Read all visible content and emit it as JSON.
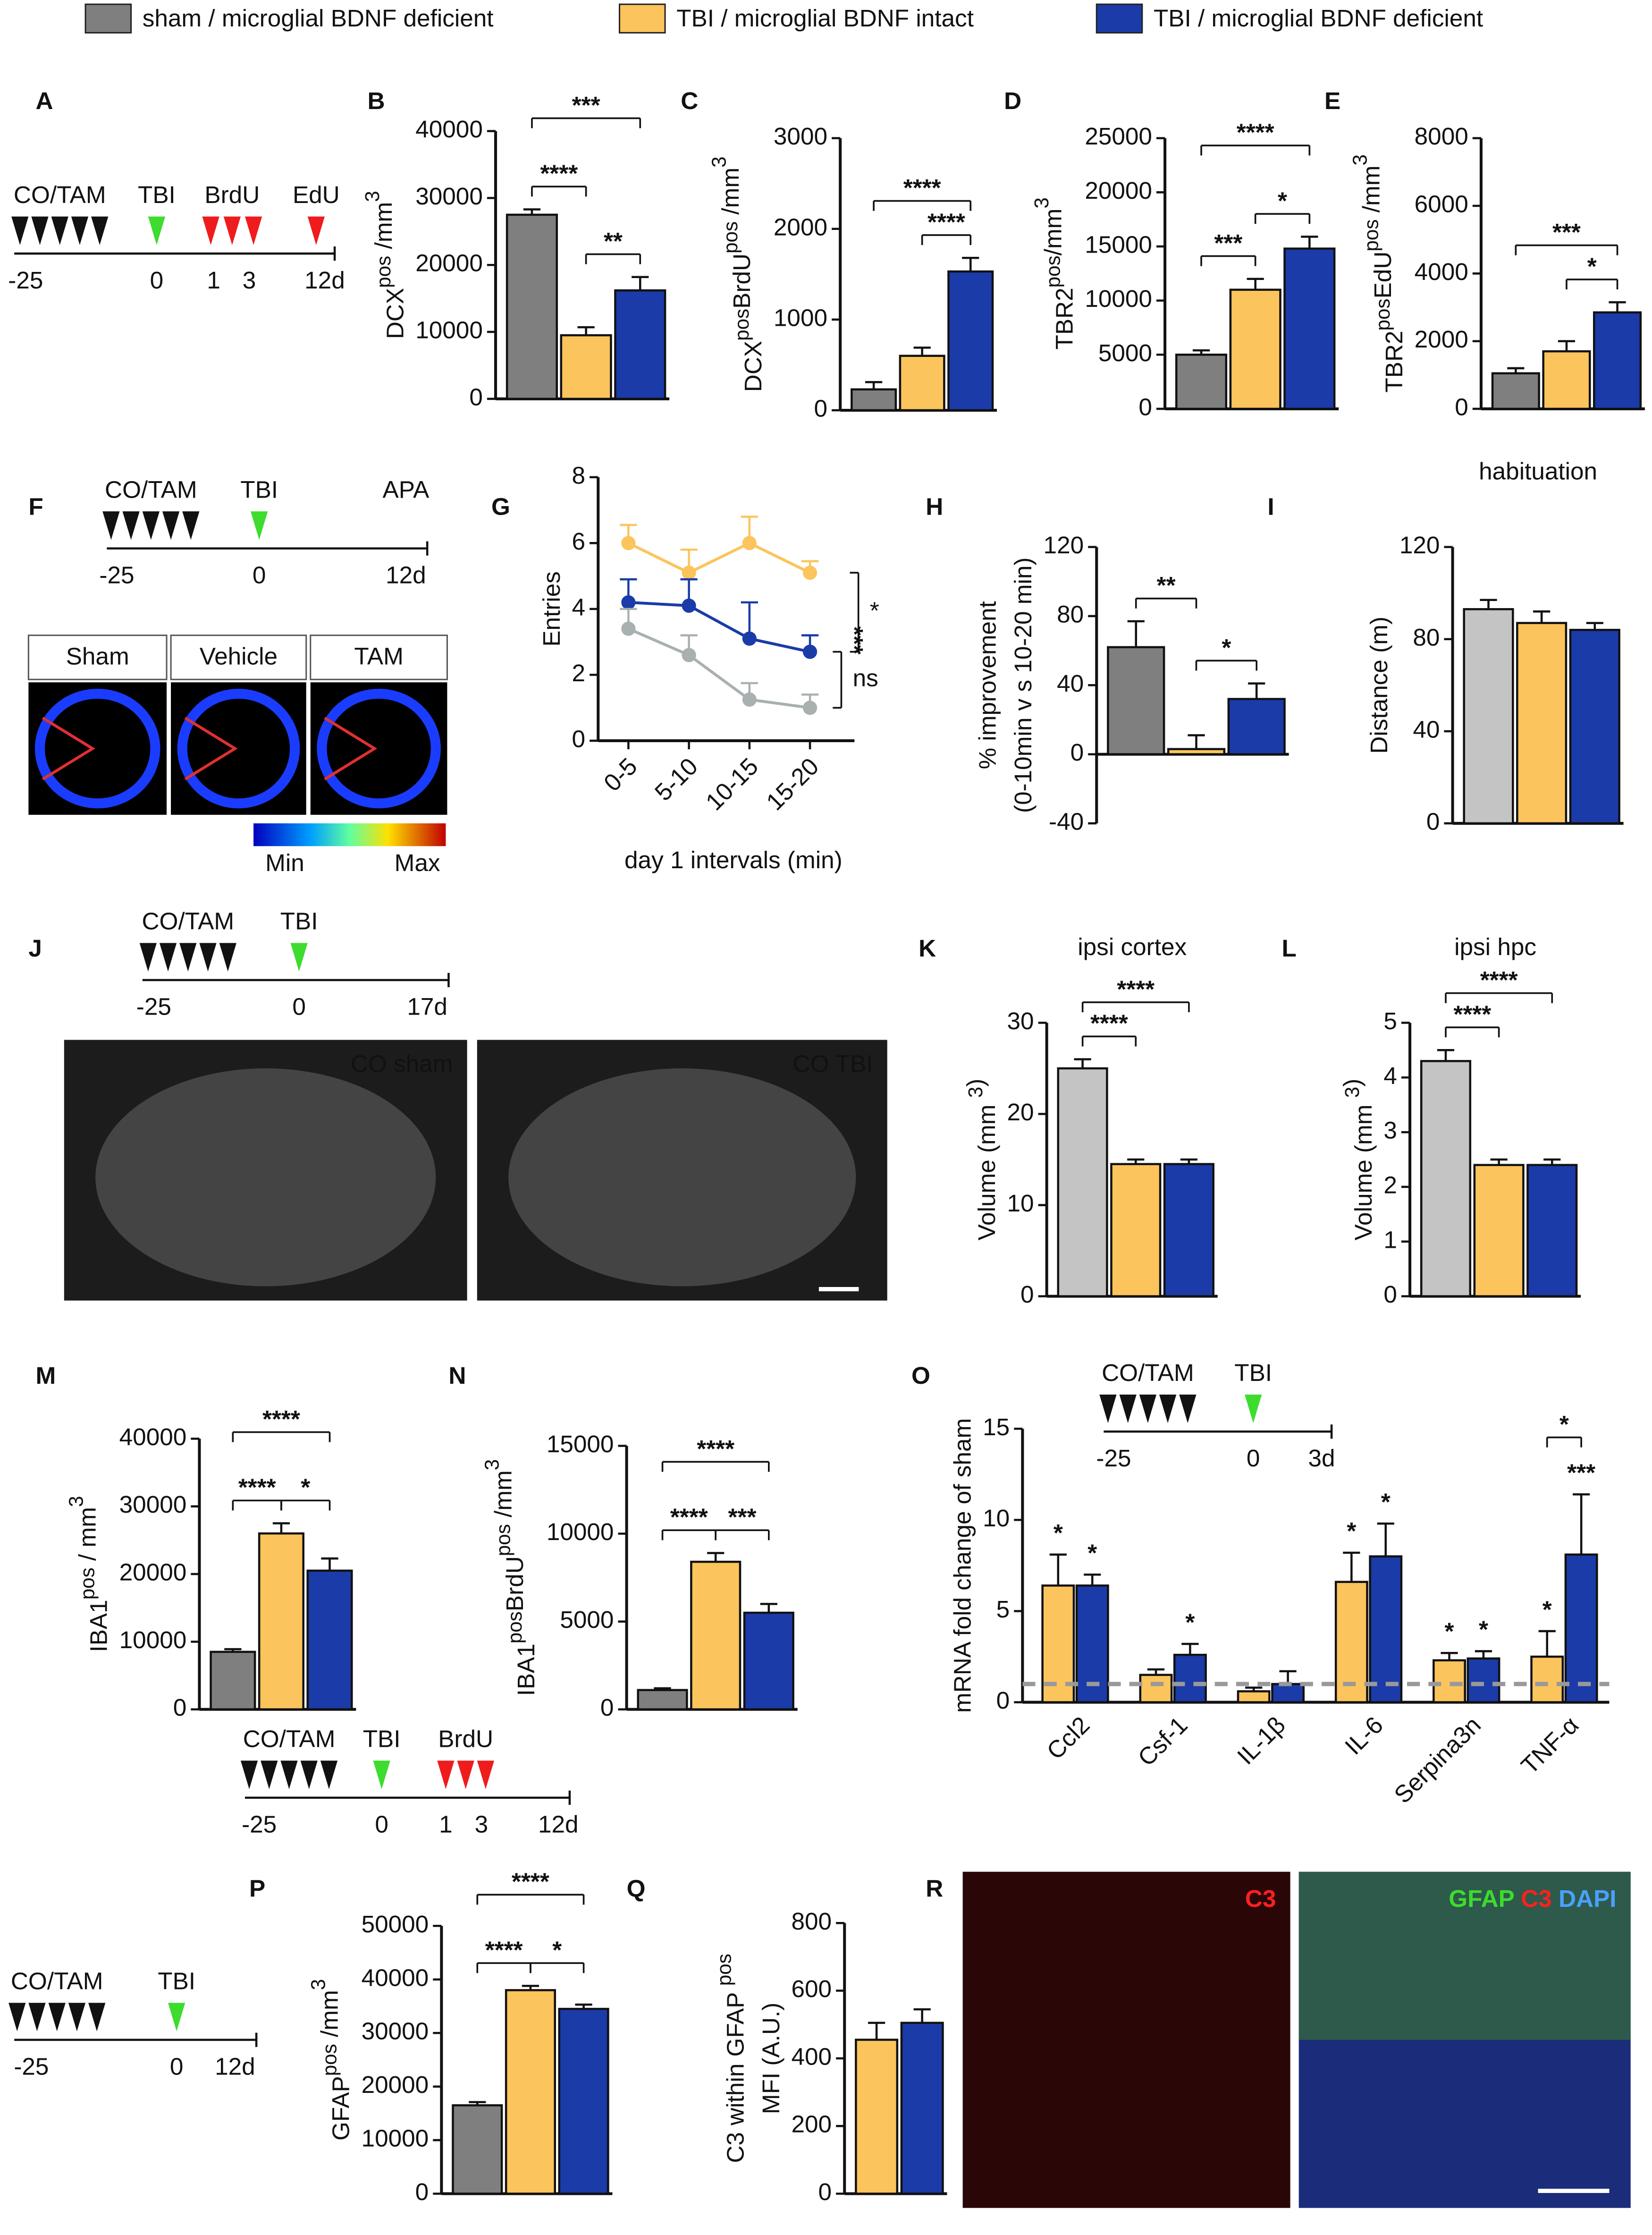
{
  "legend": [
    {
      "name": "sham / microglial BDNF deficient",
      "color": "#7f7f7f"
    },
    {
      "name": "TBI / microglial BDNF intact",
      "color": "#fcc45c"
    },
    {
      "name": "TBI / microglial BDNF deficient",
      "color": "#1b3ba8"
    }
  ],
  "timelines": [
    {
      "panel": "A",
      "ticks": [
        "-25",
        "0",
        "1",
        "3",
        "12d"
      ],
      "events": [
        {
          "label": "CO/TAM",
          "count": 5,
          "color": "#111111"
        },
        {
          "label": "TBI",
          "count": 1,
          "color": "#3ddc2f"
        },
        {
          "label": "BrdU",
          "count": 3,
          "color": "#ee1c1c"
        },
        {
          "label": "EdU",
          "count": 1,
          "color": "#ee1c1c"
        }
      ]
    },
    {
      "panel": "F",
      "ticks": [
        "-25",
        "0",
        "12d"
      ],
      "events": [
        {
          "label": "CO/TAM",
          "count": 5,
          "color": "#111111"
        },
        {
          "label": "TBI",
          "count": 1,
          "color": "#3ddc2f"
        },
        {
          "label": "APA",
          "count": 0,
          "color": "#111111"
        }
      ]
    },
    {
      "panel": "J",
      "ticks": [
        "-25",
        "0",
        "17d"
      ],
      "events": [
        {
          "label": "CO/TAM",
          "count": 5,
          "color": "#111111"
        },
        {
          "label": "TBI",
          "count": 1,
          "color": "#3ddc2f"
        }
      ]
    },
    {
      "ticks": [
        "-25",
        "0",
        "1",
        "3",
        "12d"
      ],
      "events": [
        {
          "label": "CO/TAM",
          "count": 5,
          "color": "#111111"
        },
        {
          "label": "TBI",
          "count": 1,
          "color": "#3ddc2f"
        },
        {
          "label": "BrdU",
          "count": 3,
          "color": "#ee1c1c"
        }
      ]
    },
    {
      "ticks": [
        "-25",
        "0",
        "3d"
      ],
      "events": [
        {
          "label": "CO/TAM",
          "count": 5,
          "color": "#111111"
        },
        {
          "label": "TBI",
          "count": 1,
          "color": "#3ddc2f"
        }
      ]
    },
    {
      "ticks": [
        "-25",
        "0",
        "12d"
      ],
      "events": [
        {
          "label": "CO/TAM",
          "count": 5,
          "color": "#111111"
        },
        {
          "label": "TBI",
          "count": 1,
          "color": "#3ddc2f"
        }
      ]
    }
  ],
  "images": [
    {
      "frames": [
        {
          "labels": [
            {
              "text": "Sham",
              "color": "#8a9a9a"
            }
          ]
        },
        {
          "labels": [
            {
              "text": "Vehicle",
              "color": "#f5c35a"
            }
          ]
        },
        {
          "labels": [
            {
              "text": "TAM",
              "color": "#1b3ba8"
            }
          ]
        }
      ],
      "colorbar": [
        "Min",
        "Max"
      ]
    },
    {
      "frames": [
        {
          "labels": [
            {
              "text": "CO sham",
              "color": "#ffffff"
            }
          ]
        },
        {
          "labels": [
            {
              "text": "CO TBI",
              "color": "#ffffff"
            }
          ]
        }
      ]
    },
    {
      "panel": "R",
      "frames": [
        {
          "labels": [
            {
              "text": "C3",
              "color": "#ff2020"
            }
          ]
        },
        {
          "labels": [
            {
              "text": "GFAP ",
              "color": "#3ddc2f"
            },
            {
              "text": "C3 ",
              "color": "#ff2020"
            },
            {
              "text": "DAPI",
              "color": "#4aa0ff"
            }
          ]
        }
      ]
    }
  ],
  "chart_data": [
    {
      "panel": "B",
      "type": "bar",
      "ylabel": [
        [
          "DCX",
          {
            "sup": "pos"
          },
          " /mm",
          {
            "sup": "3"
          }
        ]
      ],
      "ylim": [
        0,
        40000
      ],
      "yticks": [
        0,
        10000,
        20000,
        30000,
        40000
      ],
      "values": [
        27500,
        9500,
        16200
      ],
      "errors": [
        800,
        1200,
        2000
      ],
      "colors": [
        "#7f7f7f",
        "#fcc45c",
        "#1b3ba8"
      ],
      "annotation_color": "#ff2dc8",
      "brackets": [
        {
          "from": 0,
          "to": 2,
          "label": "***"
        },
        {
          "from": 0,
          "to": 1,
          "label": "****"
        },
        {
          "from": 1,
          "to": 2,
          "label": "**"
        }
      ]
    },
    {
      "panel": "C",
      "type": "bar",
      "ylabel": [
        [
          "DCX",
          {
            "sup": "pos"
          },
          "BrdU",
          {
            "sup": "pos"
          },
          " /mm",
          {
            "sup": "3"
          }
        ]
      ],
      "ylim": [
        0,
        3000
      ],
      "yticks": [
        0,
        1000,
        2000,
        3000
      ],
      "values": [
        230,
        600,
        1530
      ],
      "errors": [
        80,
        90,
        150
      ],
      "colors": [
        "#7f7f7f",
        "#fcc45c",
        "#1b3ba8"
      ],
      "annotation_color": "#ff2dc8",
      "brackets": [
        {
          "from": 0,
          "to": 2,
          "label": "****"
        },
        {
          "from": 1,
          "to": 2,
          "label": "****"
        }
      ]
    },
    {
      "panel": "D",
      "type": "bar",
      "ylabel": [
        [
          "TBR2",
          {
            "sup": "pos"
          },
          "/mm",
          {
            "sup": "3"
          }
        ]
      ],
      "ylim": [
        0,
        25000
      ],
      "yticks": [
        0,
        5000,
        10000,
        15000,
        20000,
        25000
      ],
      "values": [
        5000,
        11000,
        14800
      ],
      "errors": [
        400,
        1000,
        1100
      ],
      "colors": [
        "#7f7f7f",
        "#fcc45c",
        "#1b3ba8"
      ],
      "annotation_color": "#ff2dc8",
      "brackets": [
        {
          "from": 0,
          "to": 2,
          "label": "****"
        },
        {
          "from": 0,
          "to": 1,
          "label": "***"
        },
        {
          "from": 1,
          "to": 2,
          "label": "*"
        }
      ]
    },
    {
      "panel": "E",
      "type": "bar",
      "ylabel": [
        [
          "TBR2",
          {
            "sup": "pos"
          },
          "EdU",
          {
            "sup": "pos"
          },
          " /mm",
          {
            "sup": "3"
          }
        ]
      ],
      "ylim": [
        0,
        8000
      ],
      "yticks": [
        0,
        2000,
        4000,
        6000,
        8000
      ],
      "values": [
        1050,
        1700,
        2850
      ],
      "errors": [
        150,
        300,
        300
      ],
      "colors": [
        "#7f7f7f",
        "#fcc45c",
        "#1b3ba8"
      ],
      "annotation_color": "#ff2dc8",
      "brackets": [
        {
          "from": 0,
          "to": 2,
          "label": "***"
        },
        {
          "from": 1,
          "to": 2,
          "label": "*"
        }
      ]
    },
    {
      "panel": "G",
      "type": "line",
      "ylabel": [
        [
          "Entries"
        ]
      ],
      "xlabel": "day 1 intervals (min)",
      "categories": [
        "0-5",
        "5-10",
        "10-15",
        "15-20"
      ],
      "ylim": [
        0,
        8
      ],
      "yticks": [
        0,
        2,
        4,
        6,
        8
      ],
      "series": [
        {
          "color": "#fcc45c",
          "values": [
            6.0,
            5.1,
            6.0,
            5.1
          ],
          "errors": [
            0.55,
            0.7,
            0.8,
            0.35
          ]
        },
        {
          "color": "#1b3ba8",
          "values": [
            4.2,
            4.1,
            3.1,
            2.7
          ],
          "errors": [
            0.7,
            0.8,
            1.1,
            0.5
          ]
        },
        {
          "color": "#a8b0b0",
          "values": [
            3.4,
            2.6,
            1.25,
            1.0
          ],
          "errors": [
            0.6,
            0.6,
            0.5,
            0.4
          ]
        }
      ],
      "annotation_color": "#ff2dc8",
      "annotations": [
        {
          "label": "*",
          "series": [
            0,
            1
          ]
        },
        {
          "label": "***",
          "series": [
            0,
            2
          ],
          "rotate": true
        },
        {
          "label": "ns",
          "series": [
            1,
            2
          ]
        }
      ]
    },
    {
      "panel": "H",
      "type": "bar",
      "ylabel": [
        [
          "% improvement"
        ],
        [
          "(0-10min v s 10-20 min)"
        ]
      ],
      "ylim": [
        -40,
        120
      ],
      "yticks": [
        -40,
        0,
        40,
        80,
        120
      ],
      "values": [
        62,
        3,
        32
      ],
      "errors": [
        15,
        8,
        9
      ],
      "colors": [
        "#7f7f7f",
        "#fcc45c",
        "#1b3ba8"
      ],
      "annotation_color": "#ff2dc8",
      "brackets": [
        {
          "from": 0,
          "to": 1,
          "label": "**"
        },
        {
          "from": 1,
          "to": 2,
          "label": "*"
        }
      ]
    },
    {
      "panel": "I",
      "type": "bar",
      "title": "habituation",
      "ylabel": [
        [
          "Distance (m)"
        ]
      ],
      "ylim": [
        0,
        120
      ],
      "yticks": [
        0,
        40,
        80,
        120
      ],
      "values": [
        93,
        87,
        84
      ],
      "errors": [
        4,
        5,
        3
      ],
      "colors": [
        "#c4c4c4",
        "#fcc45c",
        "#1b3ba8"
      ],
      "annotation_color": "#ff2dc8",
      "brackets": []
    },
    {
      "panel": "K",
      "type": "bar",
      "title": "ipsi cortex",
      "ylabel": [
        [
          "Volume (mm ",
          {
            "sup": "3"
          },
          ")"
        ]
      ],
      "ylim": [
        0,
        30
      ],
      "yticks": [
        0,
        10,
        20,
        30
      ],
      "values": [
        25,
        14.5,
        14.5
      ],
      "errors": [
        1,
        0.5,
        0.5
      ],
      "colors": [
        "#c4c4c4",
        "#fcc45c",
        "#1b3ba8"
      ],
      "annotation_color": "#ff2dc8",
      "brackets": [
        {
          "from": 0,
          "to": 2,
          "label": "****"
        },
        {
          "from": 0,
          "to": 1,
          "label": "****"
        }
      ]
    },
    {
      "panel": "L",
      "type": "bar",
      "title": "ipsi hpc",
      "ylabel": [
        [
          "Volume (mm ",
          {
            "sup": "3"
          },
          ")"
        ]
      ],
      "ylim": [
        0,
        5
      ],
      "yticks": [
        0,
        1,
        2,
        3,
        4,
        5
      ],
      "values": [
        4.3,
        2.4,
        2.4
      ],
      "errors": [
        0.2,
        0.1,
        0.1
      ],
      "colors": [
        "#c4c4c4",
        "#fcc45c",
        "#1b3ba8"
      ],
      "annotation_color": "#ff2dc8",
      "brackets": [
        {
          "from": 0,
          "to": 2,
          "label": "****"
        },
        {
          "from": 0,
          "to": 1,
          "label": "****"
        }
      ]
    },
    {
      "panel": "M",
      "type": "bar",
      "ylabel": [
        [
          "IBA1",
          {
            "sup": "pos"
          },
          " / mm",
          {
            "sup": "3"
          }
        ]
      ],
      "ylim": [
        0,
        40000
      ],
      "yticks": [
        0,
        10000,
        20000,
        30000,
        40000
      ],
      "values": [
        8500,
        26000,
        20500
      ],
      "errors": [
        400,
        1500,
        1800
      ],
      "colors": [
        "#7f7f7f",
        "#fcc45c",
        "#1b3ba8"
      ],
      "annotation_color": "#ff2dc8",
      "brackets": [
        {
          "from": 0,
          "to": 2,
          "label": "****"
        },
        {
          "from": 0,
          "to": 1,
          "label": "****"
        },
        {
          "from": 1,
          "to": 2,
          "label": "*"
        }
      ]
    },
    {
      "panel": "N",
      "type": "bar",
      "ylabel": [
        [
          "IBA1",
          {
            "sup": "pos"
          },
          "BrdU",
          {
            "sup": "pos"
          },
          " /mm",
          {
            "sup": "3"
          }
        ]
      ],
      "ylim": [
        0,
        15000
      ],
      "yticks": [
        0,
        5000,
        10000,
        15000
      ],
      "values": [
        1100,
        8400,
        5500
      ],
      "errors": [
        100,
        500,
        500
      ],
      "colors": [
        "#7f7f7f",
        "#fcc45c",
        "#1b3ba8"
      ],
      "annotation_color": "#ff2dc8",
      "brackets": [
        {
          "from": 0,
          "to": 2,
          "label": "****"
        },
        {
          "from": 0,
          "to": 1,
          "label": "****"
        },
        {
          "from": 1,
          "to": 2,
          "label": "***"
        }
      ]
    },
    {
      "panel": "O",
      "type": "grouped_bar",
      "ylabel": [
        [
          "mRNA fold change of sham"
        ]
      ],
      "categories": [
        "Ccl2",
        "Csf-1",
        "IL-1β",
        "IL-6",
        "Serpina3n",
        "TNF-α"
      ],
      "ylim": [
        0,
        15
      ],
      "yticks": [
        0,
        5,
        10,
        15
      ],
      "reference_line": 1,
      "reference_color": "#999999",
      "annotation_color": "#ff2dc8",
      "series": [
        {
          "color": "#fcc45c",
          "values": [
            6.4,
            1.5,
            0.6,
            6.6,
            2.3,
            2.5
          ],
          "errors": [
            1.7,
            0.3,
            0.2,
            1.6,
            0.4,
            1.4
          ],
          "stars": [
            "*",
            null,
            null,
            "*",
            "*",
            "*"
          ]
        },
        {
          "color": "#1b3ba8",
          "values": [
            6.4,
            2.6,
            1.0,
            8.0,
            2.4,
            8.1
          ],
          "errors": [
            0.6,
            0.6,
            0.7,
            1.8,
            0.4,
            3.3
          ],
          "stars": [
            "*",
            "*",
            null,
            "*",
            "*",
            "***"
          ]
        }
      ],
      "star_brackets": [
        {
          "category": 5,
          "label": "*",
          "color": "#3ddc2f"
        }
      ]
    },
    {
      "panel": "P",
      "type": "bar",
      "ylabel": [
        [
          "GFAP",
          {
            "sup": "pos"
          },
          " /mm",
          {
            "sup": "3"
          }
        ]
      ],
      "ylim": [
        0,
        50000
      ],
      "yticks": [
        0,
        10000,
        20000,
        30000,
        40000,
        50000
      ],
      "values": [
        16500,
        38000,
        34500
      ],
      "errors": [
        600,
        800,
        800
      ],
      "colors": [
        "#7f7f7f",
        "#fcc45c",
        "#1b3ba8"
      ],
      "annotation_color": "#ff2dc8",
      "brackets": [
        {
          "from": 0,
          "to": 2,
          "label": "****"
        },
        {
          "from": 0,
          "to": 1,
          "label": "****"
        },
        {
          "from": 1,
          "to": 2,
          "label": "*"
        }
      ]
    },
    {
      "panel": "Q",
      "type": "bar",
      "ylabel": [
        [
          "C3 within GFAP ",
          {
            "sup": "pos"
          }
        ],
        [
          "MFI (A.U.)"
        ]
      ],
      "ylim": [
        0,
        800
      ],
      "yticks": [
        0,
        200,
        400,
        600,
        800
      ],
      "values": [
        455,
        505
      ],
      "errors": [
        50,
        40
      ],
      "colors": [
        "#fcc45c",
        "#1b3ba8"
      ],
      "annotation_color": "#ff2dc8",
      "brackets": []
    }
  ]
}
